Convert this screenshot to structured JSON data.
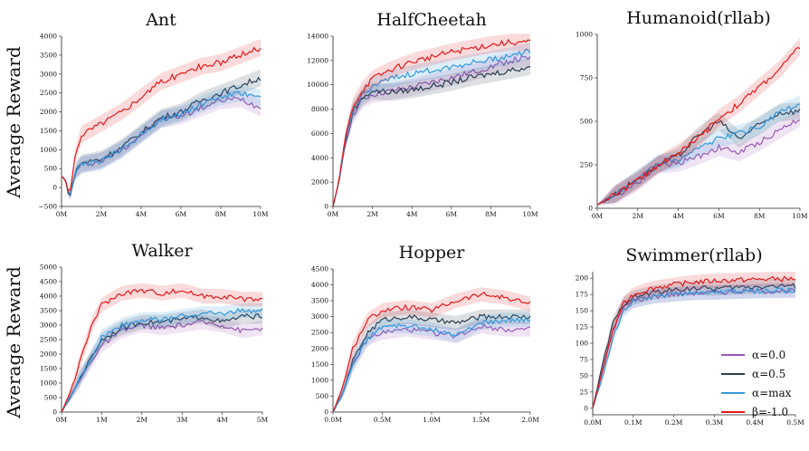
{
  "figure": {
    "ylabel": "Average Reward",
    "legend": [
      {
        "label": "α=0.0",
        "color": "#9b59b6"
      },
      {
        "label": "α=0.5",
        "color": "#2c3e50"
      },
      {
        "label": "α=max",
        "color": "#3498db"
      },
      {
        "label": "β=-1.0",
        "color": "#e31a1c"
      }
    ],
    "legend_panel": 5,
    "legend_position": "bottom-right"
  },
  "chart_data": [
    {
      "type": "line",
      "title": "Ant",
      "ylabel": "Average Reward",
      "xlim": [
        0,
        10
      ],
      "ylim": [
        -500,
        4000
      ],
      "xticks": [
        0,
        2,
        4,
        6,
        8,
        10
      ],
      "xtick_labels": [
        "0M",
        "2M",
        "4M",
        "6M",
        "8M",
        "10M"
      ],
      "yticks": [
        -500,
        0,
        500,
        1000,
        1500,
        2000,
        2500,
        3000,
        3500,
        4000
      ],
      "ytick_labels": [
        "−500",
        "0",
        "500",
        "1000",
        "1500",
        "2000",
        "2500",
        "3000",
        "3500",
        "4000"
      ],
      "x": [
        0,
        0.2,
        0.4,
        0.7,
        1,
        1.5,
        2,
        3,
        4,
        5,
        6,
        7,
        8,
        9,
        10
      ],
      "series": [
        {
          "name": "α=0.0",
          "color": "#9b59b6",
          "values": [
            300,
            200,
            -300,
            400,
            600,
            650,
            700,
            1000,
            1400,
            1800,
            1900,
            2100,
            2300,
            2350,
            2100
          ]
        },
        {
          "name": "α=0.5",
          "color": "#2c3e50",
          "values": [
            300,
            200,
            -300,
            450,
            650,
            700,
            750,
            1050,
            1450,
            1850,
            2000,
            2300,
            2500,
            2700,
            2900
          ]
        },
        {
          "name": "α=max",
          "color": "#3498db",
          "values": [
            300,
            200,
            -250,
            400,
            600,
            650,
            700,
            1000,
            1400,
            1800,
            1950,
            2200,
            2400,
            2500,
            2350
          ]
        },
        {
          "name": "β=-1.0",
          "color": "#e31a1c",
          "values": [
            300,
            200,
            -250,
            900,
            1400,
            1550,
            1700,
            2000,
            2400,
            2800,
            3000,
            3200,
            3300,
            3500,
            3700
          ]
        }
      ]
    },
    {
      "type": "line",
      "title": "HalfCheetah",
      "xlim": [
        0,
        10
      ],
      "ylim": [
        0,
        14000
      ],
      "xticks": [
        0,
        2,
        4,
        6,
        8,
        10
      ],
      "xtick_labels": [
        "0M",
        "2M",
        "4M",
        "6M",
        "8M",
        "10M"
      ],
      "yticks": [
        0,
        2000,
        4000,
        6000,
        8000,
        10000,
        12000,
        14000
      ],
      "ytick_labels": [
        "0",
        "2000",
        "4000",
        "6000",
        "8000",
        "10000",
        "12000",
        "14000"
      ],
      "x": [
        0,
        0.3,
        0.6,
        1,
        1.5,
        2,
        3,
        4,
        5,
        6,
        7,
        8,
        9,
        10
      ],
      "series": [
        {
          "name": "α=0.0",
          "color": "#9b59b6",
          "values": [
            0,
            2000,
            5000,
            7500,
            8800,
            9200,
            9500,
            9800,
            10200,
            10600,
            11000,
            11500,
            12000,
            12200
          ]
        },
        {
          "name": "α=0.5",
          "color": "#2c3e50",
          "values": [
            0,
            2000,
            5200,
            7800,
            9000,
            9500,
            9400,
            9600,
            9900,
            10200,
            10600,
            10900,
            11200,
            11500
          ]
        },
        {
          "name": "α=max",
          "color": "#3498db",
          "values": [
            0,
            2000,
            5200,
            7800,
            9200,
            9900,
            10500,
            10900,
            11200,
            11500,
            11800,
            12100,
            12400,
            12800
          ]
        },
        {
          "name": "β=-1.0",
          "color": "#e31a1c",
          "values": [
            0,
            2100,
            5500,
            8200,
            9600,
            10500,
            11300,
            11900,
            12300,
            12700,
            13000,
            13300,
            13500,
            13500
          ]
        }
      ]
    },
    {
      "type": "line",
      "title": "Humanoid(rllab)",
      "xlim": [
        0,
        10
      ],
      "ylim": [
        0,
        1000
      ],
      "xticks": [
        0,
        2,
        4,
        6,
        8,
        10
      ],
      "xtick_labels": [
        "0M",
        "2M",
        "4M",
        "6M",
        "8M",
        "10M"
      ],
      "yticks": [
        0,
        250,
        500,
        750,
        1000
      ],
      "ytick_labels": [
        "0",
        "250",
        "500",
        "750",
        "1000"
      ],
      "x": [
        0,
        1,
        2,
        3,
        4,
        5,
        6,
        7,
        8,
        9,
        10
      ],
      "series": [
        {
          "name": "α=0.0",
          "color": "#9b59b6",
          "values": [
            20,
            80,
            150,
            250,
            260,
            300,
            350,
            320,
            380,
            450,
            520
          ]
        },
        {
          "name": "α=0.5",
          "color": "#2c3e50",
          "values": [
            20,
            90,
            170,
            250,
            300,
            420,
            500,
            400,
            480,
            550,
            560
          ]
        },
        {
          "name": "α=max",
          "color": "#3498db",
          "values": [
            20,
            90,
            170,
            260,
            280,
            350,
            400,
            430,
            470,
            550,
            600
          ]
        },
        {
          "name": "β=-1.0",
          "color": "#e31a1c",
          "values": [
            20,
            90,
            160,
            250,
            320,
            400,
            520,
            600,
            700,
            800,
            930
          ]
        }
      ]
    },
    {
      "type": "line",
      "title": "Walker",
      "ylabel": "Average Reward",
      "xlim": [
        0,
        5
      ],
      "ylim": [
        0,
        5000
      ],
      "xticks": [
        0,
        1,
        2,
        3,
        4,
        5
      ],
      "xtick_labels": [
        "0M",
        "1M",
        "2M",
        "3M",
        "4M",
        "5M"
      ],
      "yticks": [
        0,
        500,
        1000,
        1500,
        2000,
        2500,
        3000,
        3500,
        4000,
        4500,
        5000
      ],
      "ytick_labels": [
        "0",
        "500",
        "1000",
        "1500",
        "2000",
        "2500",
        "3000",
        "3500",
        "4000",
        "4500",
        "5000"
      ],
      "x": [
        0,
        0.25,
        0.5,
        0.75,
        1,
        1.5,
        2,
        2.5,
        3,
        3.5,
        4,
        4.5,
        5
      ],
      "series": [
        {
          "name": "α=0.0",
          "color": "#9b59b6",
          "values": [
            0,
            600,
            1200,
            1800,
            2300,
            2800,
            3000,
            2900,
            3000,
            3100,
            3000,
            2800,
            2900
          ]
        },
        {
          "name": "α=0.5",
          "color": "#2c3e50",
          "values": [
            0,
            600,
            1300,
            1900,
            2500,
            2900,
            3100,
            3100,
            3200,
            3300,
            3100,
            3300,
            3300
          ]
        },
        {
          "name": "α=max",
          "color": "#3498db",
          "values": [
            0,
            600,
            1300,
            1900,
            2600,
            3000,
            3200,
            3200,
            3300,
            3400,
            3400,
            3500,
            3500
          ]
        },
        {
          "name": "β=-1.0",
          "color": "#e31a1c",
          "values": [
            0,
            800,
            1900,
            3000,
            3700,
            4100,
            4200,
            4100,
            4200,
            4000,
            4000,
            3900,
            3900
          ]
        }
      ]
    },
    {
      "type": "line",
      "title": "Hopper",
      "xlim": [
        0,
        2
      ],
      "ylim": [
        0,
        4500
      ],
      "xticks": [
        0,
        0.5,
        1,
        1.5,
        2
      ],
      "xtick_labels": [
        "0.0M",
        "0.5M",
        "1.0M",
        "1.5M",
        "2.0M"
      ],
      "yticks": [
        0,
        500,
        1000,
        1500,
        2000,
        2500,
        3000,
        3500,
        4000,
        4500
      ],
      "ytick_labels": [
        "0",
        "500",
        "1000",
        "1500",
        "2000",
        "2500",
        "3000",
        "3500",
        "4000",
        "4500"
      ],
      "x": [
        0,
        0.1,
        0.2,
        0.35,
        0.5,
        0.75,
        1,
        1.25,
        1.5,
        1.75,
        2
      ],
      "series": [
        {
          "name": "α=0.0",
          "color": "#9b59b6",
          "values": [
            0,
            600,
            1500,
            2300,
            2500,
            2600,
            2500,
            2400,
            2700,
            2600,
            2600
          ]
        },
        {
          "name": "α=0.5",
          "color": "#2c3e50",
          "values": [
            0,
            600,
            1600,
            2500,
            2900,
            3000,
            2900,
            2800,
            3000,
            3000,
            3000
          ]
        },
        {
          "name": "α=max",
          "color": "#3498db",
          "values": [
            0,
            600,
            1500,
            2300,
            2700,
            2700,
            2600,
            2400,
            2800,
            2900,
            2900
          ]
        },
        {
          "name": "β=-1.0",
          "color": "#e31a1c",
          "values": [
            0,
            800,
            2000,
            2900,
            3200,
            3300,
            3200,
            3500,
            3700,
            3600,
            3400
          ]
        }
      ]
    },
    {
      "type": "line",
      "title": "Swimmer(rllab)",
      "xlim": [
        0,
        0.5
      ],
      "ylim": [
        -10,
        210
      ],
      "xticks": [
        0,
        0.1,
        0.2,
        0.3,
        0.4,
        0.5
      ],
      "xtick_labels": [
        "0.0M",
        "0.1M",
        "0.2M",
        "0.3M",
        "0.4M",
        "0.5M"
      ],
      "yticks": [
        0,
        25,
        50,
        75,
        100,
        125,
        150,
        175,
        200
      ],
      "ytick_labels": [
        "0",
        "25",
        "50",
        "75",
        "100",
        "125",
        "150",
        "175",
        "200"
      ],
      "x": [
        0,
        0.025,
        0.05,
        0.075,
        0.1,
        0.15,
        0.2,
        0.25,
        0.3,
        0.35,
        0.4,
        0.45,
        0.5
      ],
      "series": [
        {
          "name": "α=0.0",
          "color": "#9b59b6",
          "values": [
            0,
            60,
            120,
            155,
            165,
            172,
            175,
            177,
            178,
            179,
            180,
            180,
            181
          ]
        },
        {
          "name": "α=0.5",
          "color": "#2c3e50",
          "values": [
            0,
            70,
            130,
            160,
            170,
            178,
            182,
            185,
            184,
            186,
            187,
            188,
            188
          ]
        },
        {
          "name": "α=max",
          "color": "#3498db",
          "values": [
            0,
            50,
            110,
            150,
            165,
            172,
            175,
            178,
            178,
            179,
            180,
            181,
            181
          ]
        },
        {
          "name": "β=-1.0",
          "color": "#e31a1c",
          "values": [
            0,
            60,
            120,
            160,
            175,
            185,
            190,
            194,
            196,
            197,
            198,
            199,
            199
          ]
        }
      ]
    }
  ]
}
